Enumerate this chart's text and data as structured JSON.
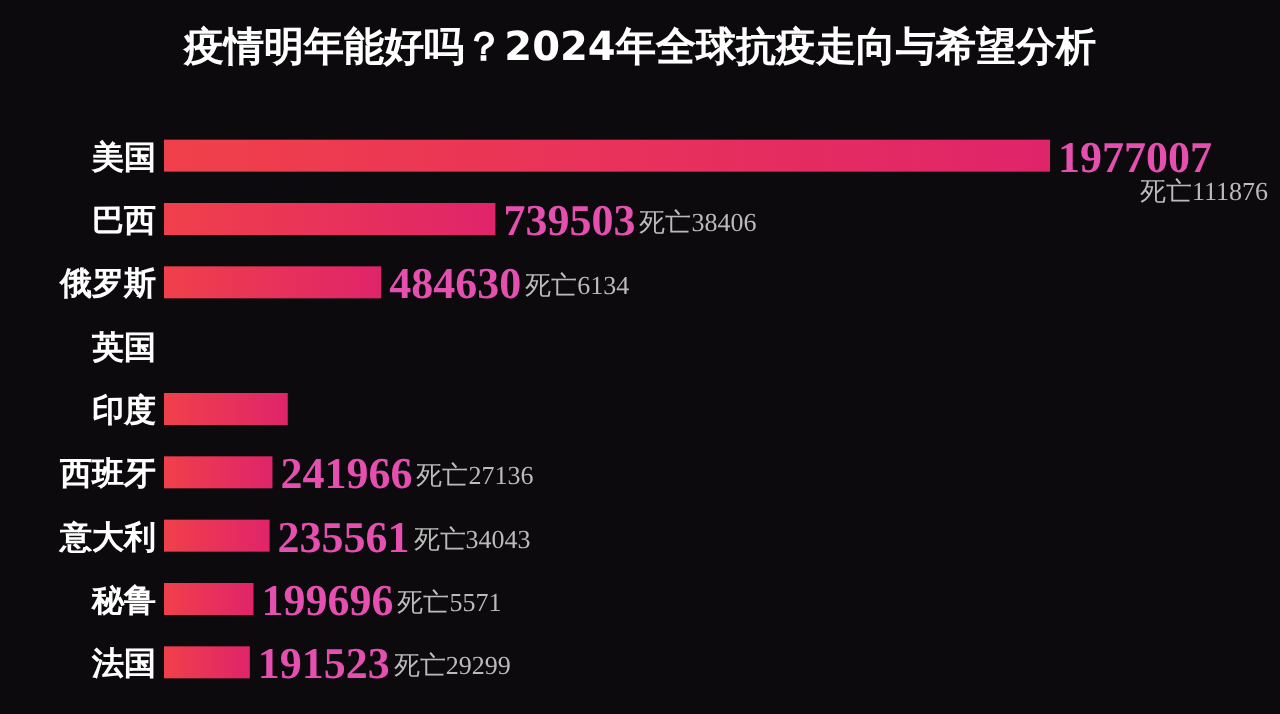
{
  "chart_data": {
    "type": "bar",
    "orientation": "horizontal",
    "title": "疫情明年能好吗？2024年全球抗疫走向与希望分析",
    "categories": [
      "美国",
      "巴西",
      "俄罗斯",
      "英国",
      "印度",
      "西班牙",
      "意大利",
      "秘鲁",
      "法国"
    ],
    "values": [
      1977007,
      739503,
      484630,
      null,
      276140,
      241966,
      235561,
      199696,
      191523
    ],
    "value_labels": [
      "1977007",
      "739503",
      "484630",
      null,
      null,
      "241966",
      "235561",
      "199696",
      "191523"
    ],
    "color": "#e0246a",
    "annotations": [
      "死亡111876",
      "死亡38406",
      "死亡6134",
      "死亡27136",
      "死亡34043",
      "死亡5571",
      "死亡29299"
    ]
  }
}
